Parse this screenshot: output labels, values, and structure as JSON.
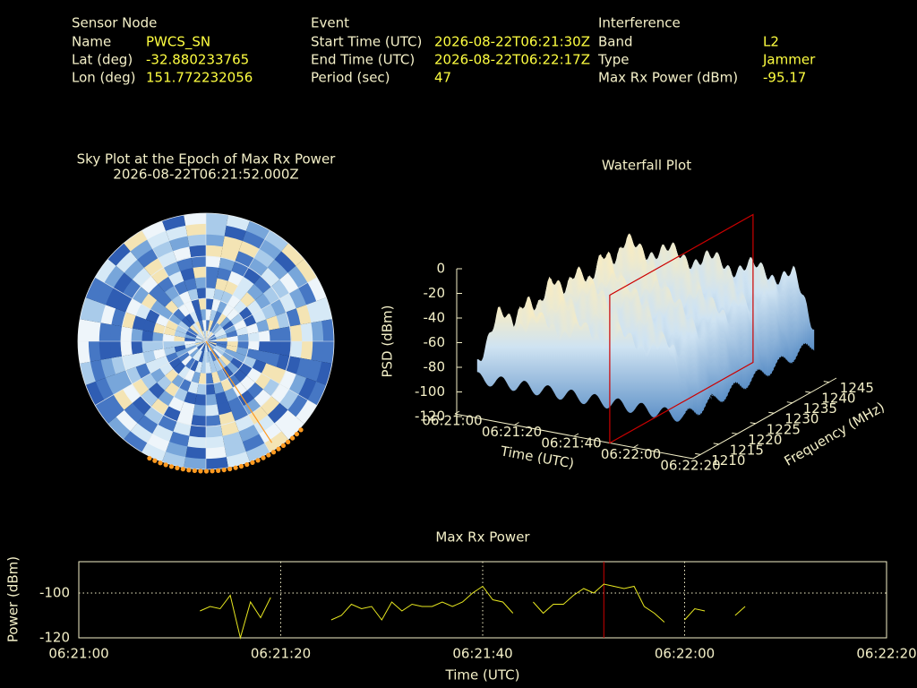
{
  "header": {
    "columns": [
      {
        "title": "Sensor Node",
        "rows": [
          {
            "label": "Name",
            "value": "PWCS_SN"
          },
          {
            "label": "Lat (deg)",
            "value": -32.880233765
          },
          {
            "label": "Lon (deg)",
            "value": 151.772232056
          }
        ]
      },
      {
        "title": "Event",
        "rows": [
          {
            "label": "Start Time (UTC)",
            "value": "2026-08-22T06:21:30Z"
          },
          {
            "label": "End Time (UTC)",
            "value": "2026-08-22T06:22:17Z"
          },
          {
            "label": "Period (sec)",
            "value": 47
          }
        ]
      },
      {
        "title": "Interference",
        "rows": [
          {
            "label": "Band",
            "value": "L2"
          },
          {
            "label": "Type",
            "value": "Jammer"
          },
          {
            "label": "Max Rx Power (dBm)",
            "value": -95.17
          }
        ]
      }
    ]
  },
  "chart_data": [
    {
      "type": "polar",
      "title": "Sky Plot at the Epoch of Max Rx Power",
      "subtitle": "2026-08-22T06:21:52.000Z"
    },
    {
      "type": "surface",
      "title": "Waterfall Plot",
      "xlabel": "Time (UTC)",
      "ylabel": "Frequency (MHz)",
      "zlabel": "PSD (dBm)",
      "xlim": [
        "06:21:00",
        "06:22:20"
      ],
      "xticks": [
        "06:21:00",
        "06:21:20",
        "06:21:40",
        "06:22:00",
        "06:22:20"
      ],
      "ylim": [
        1208,
        1247
      ],
      "yticks": [
        1210,
        1215,
        1220,
        1225,
        1230,
        1235,
        1240,
        1245
      ],
      "zlim": [
        -120,
        0
      ],
      "zticks": [
        -120,
        -100,
        -80,
        -60,
        -40,
        -20,
        0
      ],
      "marker_x": "06:21:52",
      "marker_color": "#cc0000"
    },
    {
      "type": "line",
      "title": "Max Rx Power",
      "xlabel": "Time (UTC)",
      "ylabel": "Power (dBm)",
      "x": [
        "06:21:12",
        "06:21:13",
        "06:21:14",
        "06:21:15",
        "06:21:16",
        "06:21:17",
        "06:21:18",
        "06:21:19",
        "06:21:20",
        "06:21:21",
        "06:21:22",
        "06:21:23",
        "06:21:24",
        "06:21:25",
        "06:21:26",
        "06:21:27",
        "06:21:28",
        "06:21:29",
        "06:21:30",
        "06:21:31",
        "06:21:32",
        "06:21:33",
        "06:21:34",
        "06:21:35",
        "06:21:36",
        "06:21:37",
        "06:21:38",
        "06:21:39",
        "06:21:40",
        "06:21:41",
        "06:21:42",
        "06:21:43",
        "06:21:44",
        "06:21:45",
        "06:21:46",
        "06:21:47",
        "06:21:48",
        "06:21:49",
        "06:21:50",
        "06:21:51",
        "06:21:52",
        "06:21:53",
        "06:21:54",
        "06:21:55",
        "06:21:56",
        "06:21:57",
        "06:21:58",
        "06:21:59",
        "06:22:00",
        "06:22:01",
        "06:22:02",
        "06:22:03",
        "06:22:04",
        "06:22:05",
        "06:22:06"
      ],
      "values": [
        -108,
        -106,
        -107,
        -101,
        -120,
        -104,
        -111,
        -102,
        null,
        null,
        null,
        null,
        null,
        -112,
        -110,
        -105,
        -107,
        -106,
        -112,
        -104,
        -108,
        -105,
        -106,
        -106,
        -104,
        -106,
        -104,
        -100,
        -97,
        -103,
        -104,
        -109,
        null,
        -104,
        -109,
        -105,
        -105,
        -101,
        -98,
        -100,
        -96,
        -97,
        -98,
        -97,
        -106,
        -109,
        -113,
        null,
        -112,
        -107,
        -108,
        null,
        null,
        -110,
        -106
      ],
      "color": "#e8e820",
      "xlim": [
        "06:21:00",
        "06:22:20"
      ],
      "xticks": [
        "06:21:00",
        "06:21:20",
        "06:21:40",
        "06:22:00",
        "06:22:20"
      ],
      "ylim": [
        -120,
        -86
      ],
      "yticks": [
        -120,
        -100
      ],
      "grid": true,
      "marker_x": "06:21:52",
      "marker_color": "#cc0000"
    }
  ]
}
